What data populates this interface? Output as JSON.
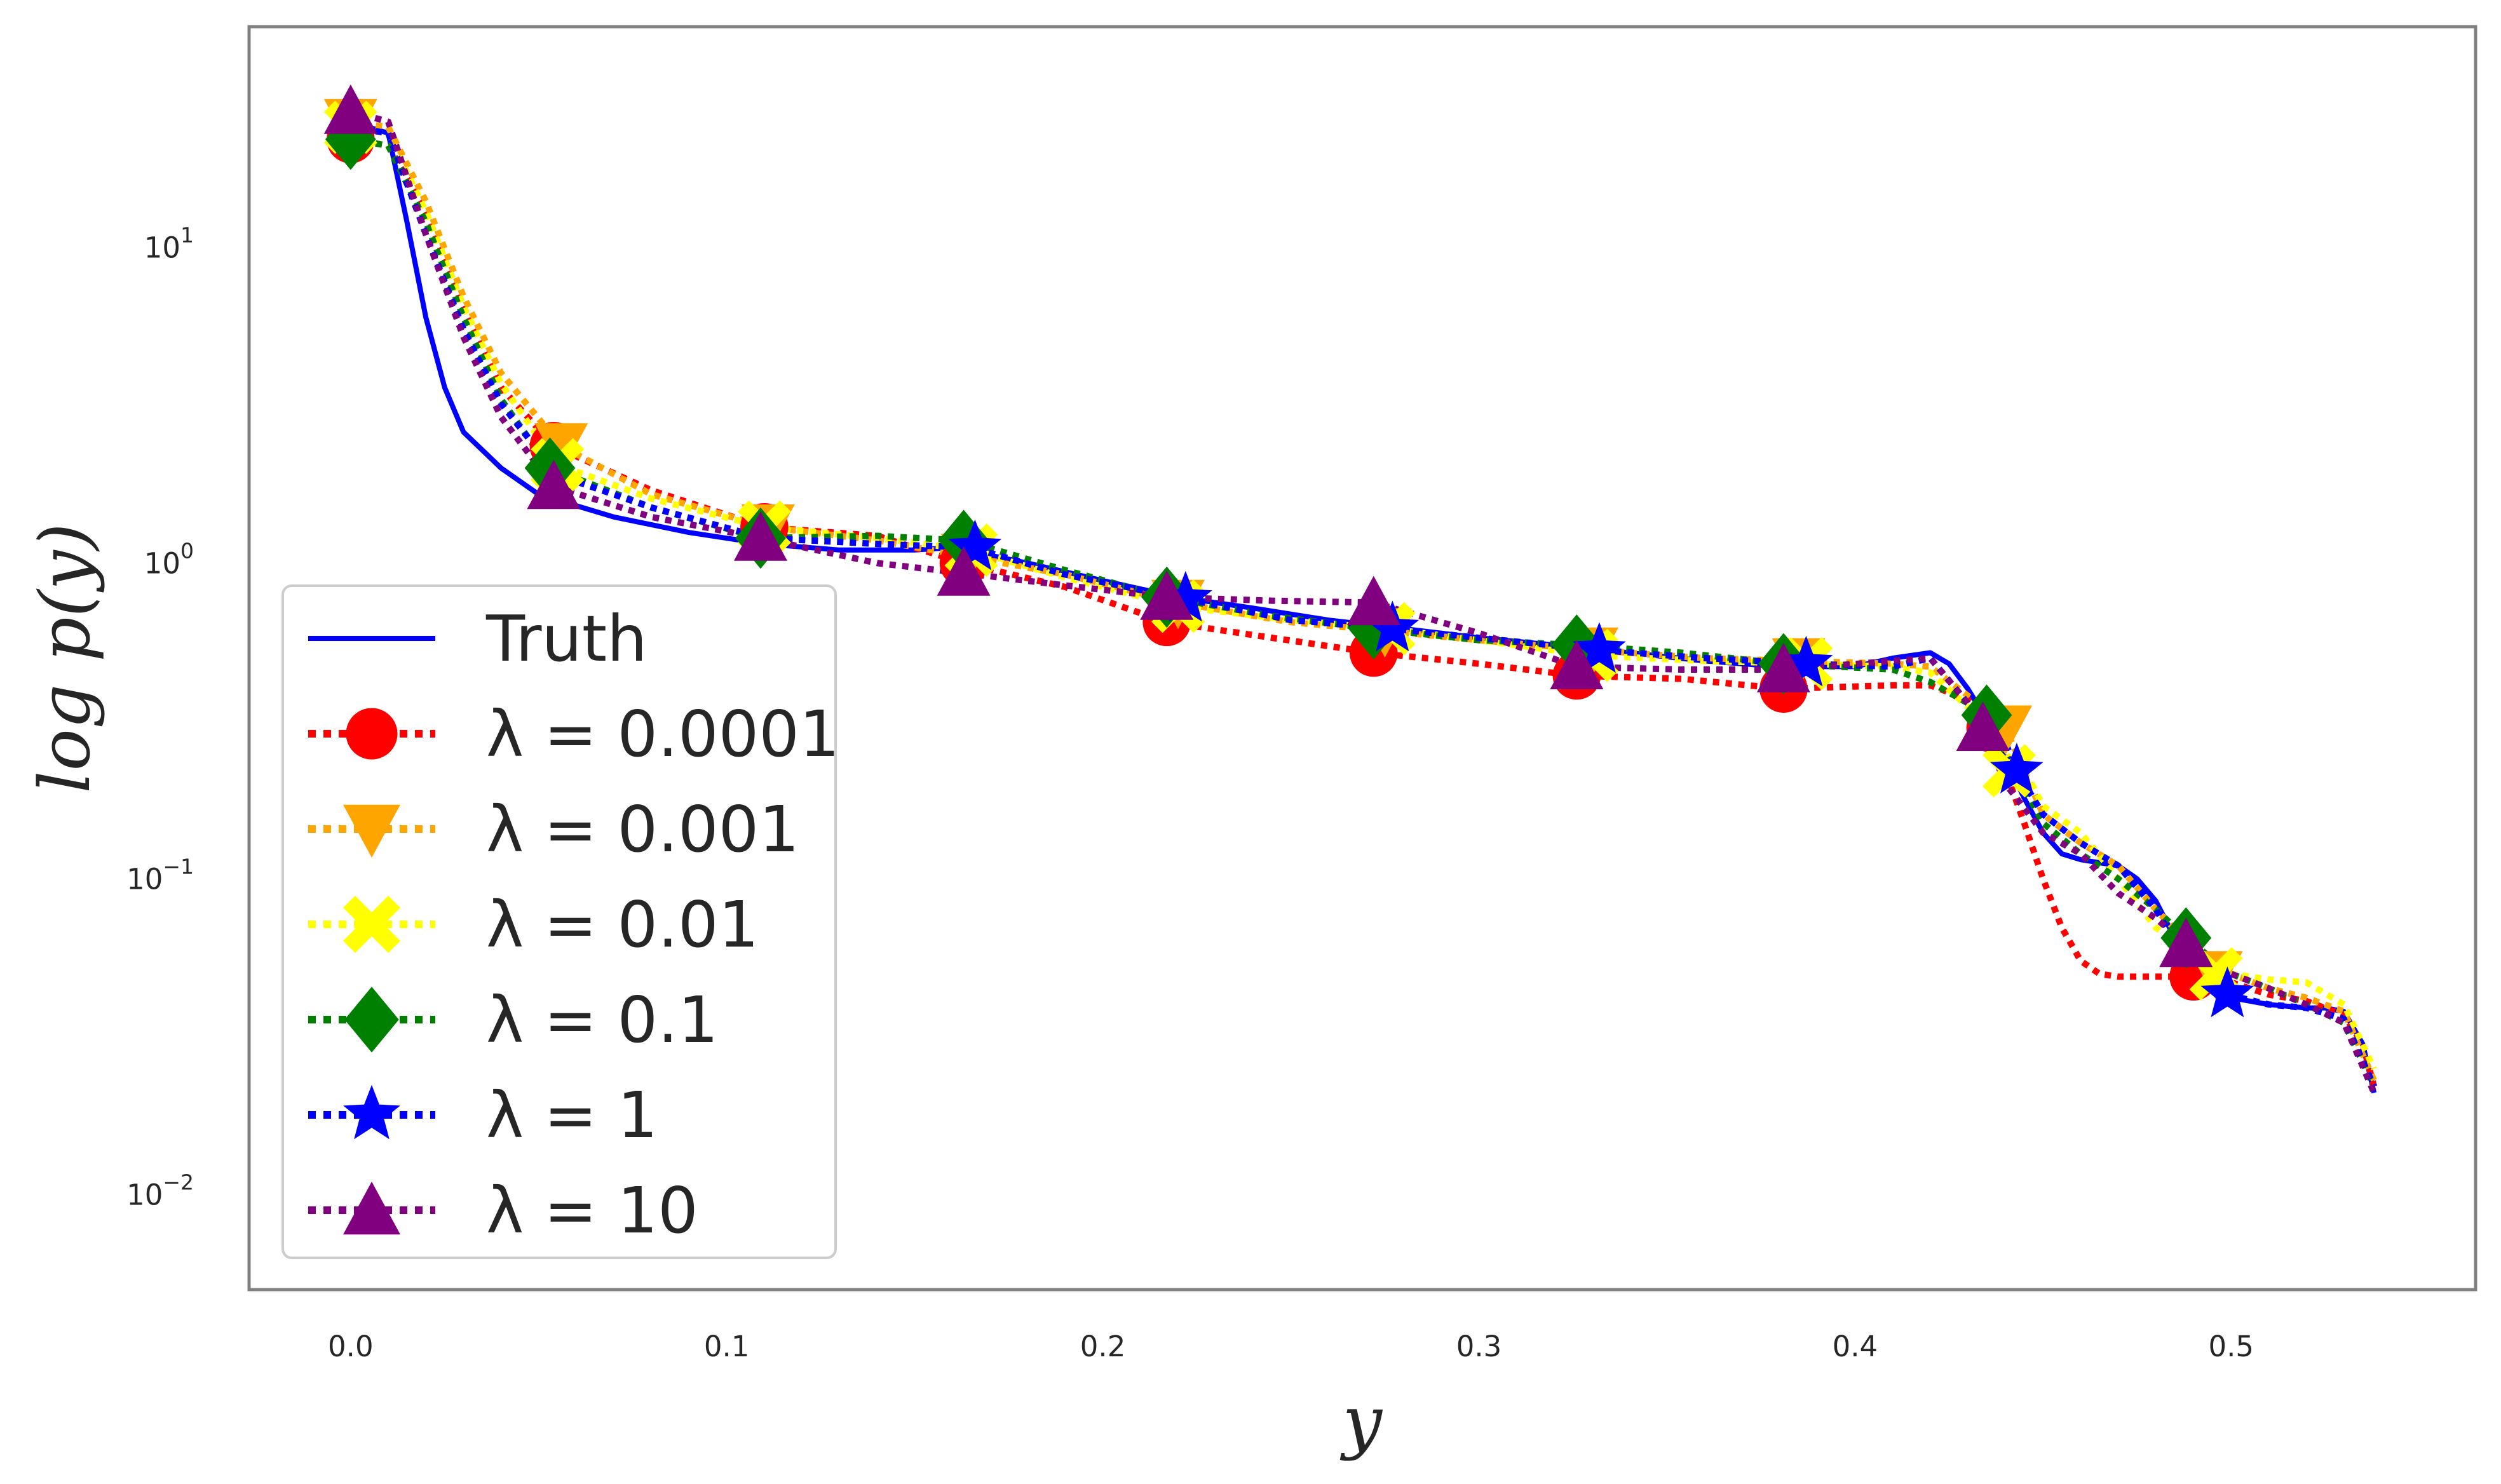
{
  "chart_data": {
    "type": "line",
    "xlabel": "y",
    "ylabel": "log p(y)",
    "yscale": "log",
    "xlim": [
      -0.027,
      0.565
    ],
    "ylim": [
      0.005,
      50
    ],
    "grid": false,
    "legend_position": "lower-left",
    "x_ticks": [
      0.0,
      0.1,
      0.2,
      0.3,
      0.4,
      0.5
    ],
    "x_tick_labels": [
      "0.0",
      "0.1",
      "0.2",
      "0.3",
      "0.4",
      "0.5"
    ],
    "y_ticks": [
      {
        "value": 10,
        "base": "10",
        "exp": "1"
      },
      {
        "value": 1,
        "base": "10",
        "exp": "0"
      },
      {
        "value": 0.1,
        "base": "10",
        "exp": "−1"
      },
      {
        "value": 0.01,
        "base": "10",
        "exp": "−2"
      }
    ],
    "series": [
      {
        "name": "Truth",
        "color": "#0000ff",
        "style": "solid",
        "marker": "none",
        "x": [
          0,
          0.01,
          0.015,
          0.02,
          0.025,
          0.03,
          0.04,
          0.05,
          0.07,
          0.09,
          0.11,
          0.13,
          0.15,
          0.16,
          0.18,
          0.2,
          0.22,
          0.24,
          0.26,
          0.28,
          0.3,
          0.32,
          0.34,
          0.36,
          0.38,
          0.4,
          0.41,
          0.42,
          0.425,
          0.43,
          0.435,
          0.44,
          0.445,
          0.45,
          0.455,
          0.46,
          0.47,
          0.475,
          0.48,
          0.485,
          0.49,
          0.5,
          0.51,
          0.52,
          0.525,
          0.53,
          0.535,
          0.538
        ],
        "y": [
          25,
          23,
          12,
          6,
          3.6,
          2.6,
          2.0,
          1.65,
          1.4,
          1.25,
          1.15,
          1.1,
          1.1,
          1.12,
          1.0,
          0.88,
          0.78,
          0.72,
          0.66,
          0.62,
          0.58,
          0.55,
          0.52,
          0.49,
          0.47,
          0.47,
          0.5,
          0.52,
          0.48,
          0.4,
          0.32,
          0.24,
          0.18,
          0.14,
          0.12,
          0.115,
          0.11,
          0.1,
          0.085,
          0.065,
          0.05,
          0.042,
          0.04,
          0.039,
          0.039,
          0.038,
          0.03,
          0.021
        ]
      },
      {
        "name": "λ = 0.0001",
        "color": "#ff0000",
        "style": "dotted",
        "marker": "circle",
        "x": [
          0,
          0.01,
          0.02,
          0.03,
          0.04,
          0.054,
          0.08,
          0.11,
          0.14,
          0.163,
          0.19,
          0.217,
          0.245,
          0.272,
          0.3,
          0.326,
          0.354,
          0.381,
          0.41,
          0.42,
          0.43,
          0.435,
          0.44,
          0.445,
          0.45,
          0.455,
          0.46,
          0.465,
          0.47,
          0.48,
          0.49,
          0.5,
          0.51,
          0.52,
          0.53,
          0.535,
          0.538
        ],
        "y": [
          22,
          21,
          13,
          6.5,
          3.6,
          2.35,
          1.7,
          1.3,
          1.22,
          1.0,
          0.84,
          0.65,
          0.58,
          0.52,
          0.48,
          0.44,
          0.43,
          0.4,
          0.41,
          0.41,
          0.37,
          0.3,
          0.22,
          0.15,
          0.1,
          0.07,
          0.055,
          0.05,
          0.049,
          0.049,
          0.049,
          0.047,
          0.043,
          0.041,
          0.037,
          0.03,
          0.022
        ],
        "markers_x": [
          0,
          0.054,
          0.11,
          0.163,
          0.217,
          0.272,
          0.326,
          0.381,
          0.436,
          0.49
        ],
        "markers_y": [
          22,
          2.35,
          1.3,
          1.0,
          0.65,
          0.52,
          0.44,
          0.4,
          0.3,
          0.049
        ]
      },
      {
        "name": "λ = 0.001",
        "color": "#ffa500",
        "style": "dotted",
        "marker": "triangle-down",
        "x": [
          0,
          0.01,
          0.02,
          0.03,
          0.04,
          0.056,
          0.08,
          0.111,
          0.14,
          0.164,
          0.19,
          0.22,
          0.25,
          0.275,
          0.3,
          0.33,
          0.36,
          0.385,
          0.41,
          0.42,
          0.43,
          0.44,
          0.445,
          0.45,
          0.46,
          0.47,
          0.48,
          0.49,
          0.5,
          0.51,
          0.52,
          0.53,
          0.538
        ],
        "y": [
          25,
          24,
          14,
          7,
          4,
          2.35,
          1.65,
          1.3,
          1.18,
          1.05,
          0.92,
          0.75,
          0.65,
          0.61,
          0.57,
          0.53,
          0.5,
          0.49,
          0.48,
          0.47,
          0.38,
          0.3,
          0.22,
          0.16,
          0.13,
          0.11,
          0.08,
          0.06,
          0.05,
          0.045,
          0.042,
          0.038,
          0.023
        ],
        "markers_x": [
          0,
          0.056,
          0.111,
          0.164,
          0.22,
          0.275,
          0.33,
          0.385,
          0.44,
          0.496
        ],
        "markers_y": [
          25,
          2.35,
          1.3,
          1.05,
          0.75,
          0.61,
          0.53,
          0.49,
          0.3,
          0.05
        ]
      },
      {
        "name": "λ = 0.01",
        "color": "#ffff00",
        "style": "dotted",
        "marker": "x",
        "x": [
          0,
          0.01,
          0.02,
          0.03,
          0.04,
          0.055,
          0.08,
          0.11,
          0.14,
          0.165,
          0.19,
          0.22,
          0.25,
          0.276,
          0.3,
          0.33,
          0.36,
          0.387,
          0.41,
          0.42,
          0.43,
          0.44,
          0.447,
          0.45,
          0.46,
          0.47,
          0.48,
          0.49,
          0.5,
          0.51,
          0.52,
          0.53,
          0.538
        ],
        "y": [
          24,
          23,
          13,
          6.5,
          3.7,
          2.05,
          1.6,
          1.3,
          1.2,
          1.1,
          0.9,
          0.73,
          0.66,
          0.62,
          0.57,
          0.51,
          0.49,
          0.48,
          0.47,
          0.45,
          0.35,
          0.25,
          0.2,
          0.17,
          0.14,
          0.1,
          0.07,
          0.058,
          0.05,
          0.048,
          0.047,
          0.04,
          0.025
        ],
        "markers_x": [
          0,
          0.055,
          0.11,
          0.165,
          0.22,
          0.276,
          0.33,
          0.387,
          0.441,
          0.496
        ],
        "markers_y": [
          24,
          2.05,
          1.3,
          1.1,
          0.73,
          0.62,
          0.51,
          0.48,
          0.22,
          0.05
        ]
      },
      {
        "name": "λ = 0.1",
        "color": "#008000",
        "style": "dotted",
        "marker": "diamond",
        "x": [
          0,
          0.01,
          0.02,
          0.03,
          0.04,
          0.053,
          0.08,
          0.109,
          0.14,
          0.163,
          0.19,
          0.217,
          0.245,
          0.272,
          0.3,
          0.326,
          0.354,
          0.381,
          0.41,
          0.42,
          0.43,
          0.435,
          0.44,
          0.45,
          0.46,
          0.47,
          0.48,
          0.488,
          0.5,
          0.51,
          0.52,
          0.53,
          0.538
        ],
        "y": [
          22,
          21,
          12,
          6,
          3.3,
          2.0,
          1.5,
          1.2,
          1.22,
          1.18,
          0.95,
          0.78,
          0.68,
          0.62,
          0.57,
          0.55,
          0.52,
          0.48,
          0.46,
          0.42,
          0.36,
          0.33,
          0.25,
          0.15,
          0.12,
          0.1,
          0.08,
          0.065,
          0.05,
          0.045,
          0.04,
          0.035,
          0.022
        ],
        "markers_x": [
          0,
          0.053,
          0.109,
          0.163,
          0.217,
          0.272,
          0.326,
          0.381,
          0.435,
          0.488
        ],
        "markers_y": [
          22,
          2.0,
          1.2,
          1.18,
          0.78,
          0.62,
          0.55,
          0.48,
          0.33,
          0.065
        ]
      },
      {
        "name": "λ = 1",
        "color": "#0000ff",
        "style": "dotted",
        "marker": "star",
        "x": [
          0,
          0.01,
          0.02,
          0.03,
          0.04,
          0.055,
          0.08,
          0.11,
          0.14,
          0.165,
          0.19,
          0.222,
          0.25,
          0.277,
          0.3,
          0.332,
          0.36,
          0.387,
          0.41,
          0.42,
          0.43,
          0.44,
          0.443,
          0.45,
          0.46,
          0.47,
          0.48,
          0.49,
          0.499,
          0.51,
          0.52,
          0.53,
          0.538
        ],
        "y": [
          24,
          23,
          11,
          5.5,
          3.2,
          1.9,
          1.5,
          1.2,
          1.15,
          1.12,
          0.92,
          0.77,
          0.66,
          0.62,
          0.58,
          0.53,
          0.5,
          0.48,
          0.47,
          0.5,
          0.36,
          0.27,
          0.22,
          0.16,
          0.13,
          0.11,
          0.08,
          0.05,
          0.043,
          0.04,
          0.039,
          0.036,
          0.022
        ],
        "markers_x": [
          0.166,
          0.222,
          0.277,
          0.332,
          0.387,
          0.443,
          0.499
        ],
        "markers_y": [
          1.12,
          0.77,
          0.62,
          0.53,
          0.48,
          0.22,
          0.043
        ]
      },
      {
        "name": "λ = 10",
        "color": "#800080",
        "style": "dotted",
        "marker": "triangle-up",
        "x": [
          0,
          0.01,
          0.02,
          0.03,
          0.04,
          0.054,
          0.08,
          0.109,
          0.14,
          0.163,
          0.19,
          0.217,
          0.245,
          0.272,
          0.3,
          0.326,
          0.354,
          0.381,
          0.41,
          0.42,
          0.43,
          0.434,
          0.44,
          0.45,
          0.46,
          0.47,
          0.48,
          0.488,
          0.5,
          0.51,
          0.52,
          0.53,
          0.538
        ],
        "y": [
          27,
          25,
          11,
          5.2,
          2.9,
          1.75,
          1.4,
          1.2,
          1.0,
          0.93,
          0.85,
          0.78,
          0.76,
          0.75,
          0.6,
          0.47,
          0.46,
          0.46,
          0.49,
          0.5,
          0.36,
          0.3,
          0.2,
          0.14,
          0.12,
          0.09,
          0.075,
          0.062,
          0.05,
          0.045,
          0.04,
          0.035,
          0.021
        ],
        "markers_x": [
          0,
          0.054,
          0.109,
          0.163,
          0.217,
          0.272,
          0.326,
          0.381,
          0.434,
          0.488
        ],
        "markers_y": [
          27,
          1.75,
          1.2,
          0.93,
          0.78,
          0.75,
          0.47,
          0.46,
          0.3,
          0.062
        ]
      }
    ]
  }
}
